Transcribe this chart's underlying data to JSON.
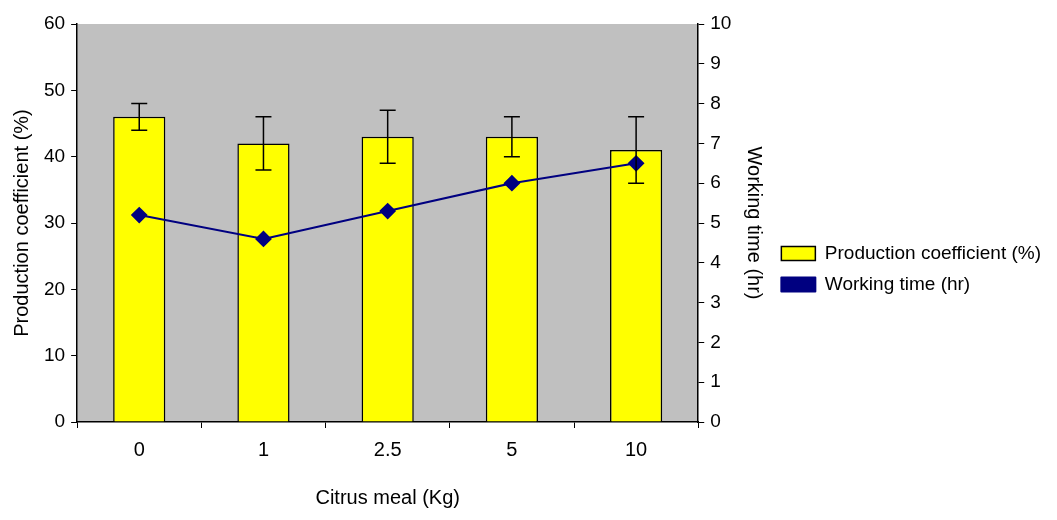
{
  "chart_data": {
    "type": "bar",
    "xlabel": "Citrus meal (Kg)",
    "ylabel": "Production coefficient (%)",
    "y2label": "Working time (hr)",
    "categories": [
      "0",
      "1",
      "2.5",
      "5",
      "10"
    ],
    "series": [
      {
        "name": "Production coefficient (%)",
        "color": "#ffff00",
        "values": [
          46,
          42,
          43,
          43,
          41
        ],
        "errors": [
          2,
          4,
          4,
          3,
          5
        ]
      },
      {
        "name": "Working time (hr)",
        "type": "line",
        "axis": "y2",
        "color": "#000080",
        "values": [
          5.2,
          4.6,
          5.3,
          6.0,
          6.5
        ],
        "marker": "diamond",
        "line_style": "solid"
      }
    ],
    "ylim": [
      0,
      60
    ],
    "yticks": [
      0,
      10,
      20,
      30,
      40,
      50,
      60
    ],
    "y2lim": [
      0,
      10
    ],
    "y2ticks": [
      0,
      1,
      2,
      3,
      4,
      5,
      6,
      7,
      8,
      9,
      10
    ],
    "grid": false,
    "legend": "right"
  }
}
